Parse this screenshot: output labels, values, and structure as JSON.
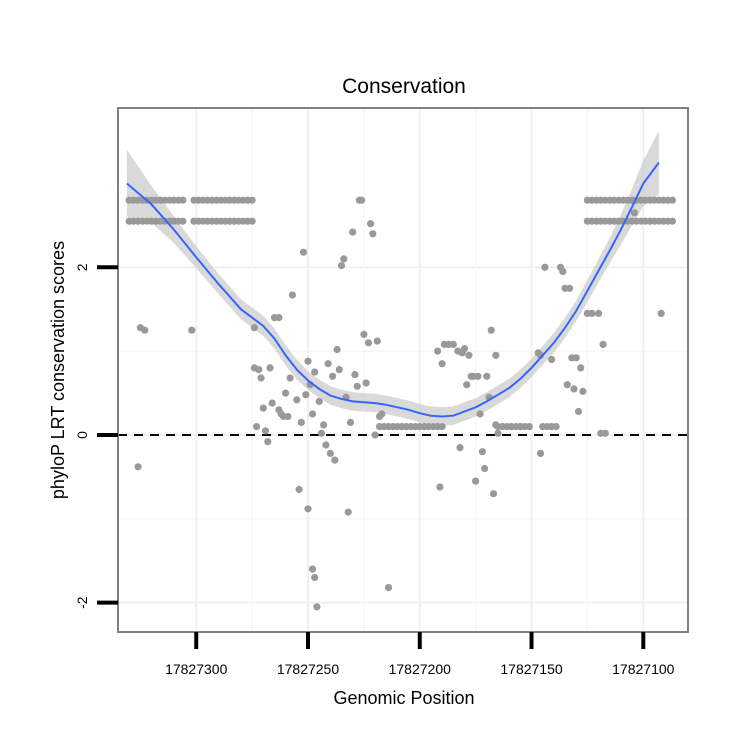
{
  "chart_data": {
    "type": "scatter",
    "title": "Conservation",
    "xlabel": "Genomic Position",
    "ylabel": "phyloP LRT conservation scores",
    "x_reversed": true,
    "xlim": [
      17827335,
      17827080
    ],
    "ylim": [
      -2.35,
      3.9
    ],
    "x_ticks": [
      17827300,
      17827250,
      17827200,
      17827150,
      17827100
    ],
    "x_tick_labels": [
      "17827300",
      "17827250",
      "17827200",
      "17827150",
      "17827100"
    ],
    "y_ticks": [
      -2,
      0,
      2
    ],
    "y_tick_labels": [
      "-2",
      "0",
      "2"
    ],
    "reference_line": {
      "y": 0,
      "style": "dashed"
    },
    "grid": true,
    "colors": {
      "points": "#999999",
      "smooth": "#3366FF",
      "ribbon": "#cccccc",
      "panel_border": "#808080"
    },
    "series": [
      {
        "name": "phyloP scores",
        "points": [
          [
            17827330,
            2.8
          ],
          [
            17827328,
            2.8
          ],
          [
            17827326,
            2.8
          ],
          [
            17827324,
            2.8
          ],
          [
            17827322,
            2.8
          ],
          [
            17827320,
            2.8
          ],
          [
            17827318,
            2.8
          ],
          [
            17827316,
            2.8
          ],
          [
            17827314,
            2.8
          ],
          [
            17827312,
            2.8
          ],
          [
            17827310,
            2.8
          ],
          [
            17827308,
            2.8
          ],
          [
            17827306,
            2.8
          ],
          [
            17827330,
            2.55
          ],
          [
            17827328,
            2.55
          ],
          [
            17827326,
            2.55
          ],
          [
            17827324,
            2.55
          ],
          [
            17827322,
            2.55
          ],
          [
            17827320,
            2.55
          ],
          [
            17827318,
            2.55
          ],
          [
            17827316,
            2.55
          ],
          [
            17827314,
            2.55
          ],
          [
            17827312,
            2.55
          ],
          [
            17827310,
            2.55
          ],
          [
            17827308,
            2.55
          ],
          [
            17827306,
            2.55
          ],
          [
            17827301,
            2.8
          ],
          [
            17827299,
            2.8
          ],
          [
            17827297,
            2.8
          ],
          [
            17827295,
            2.8
          ],
          [
            17827293,
            2.8
          ],
          [
            17827291,
            2.8
          ],
          [
            17827289,
            2.8
          ],
          [
            17827287,
            2.8
          ],
          [
            17827285,
            2.8
          ],
          [
            17827283,
            2.8
          ],
          [
            17827281,
            2.8
          ],
          [
            17827279,
            2.8
          ],
          [
            17827277,
            2.8
          ],
          [
            17827275,
            2.8
          ],
          [
            17827301,
            2.55
          ],
          [
            17827299,
            2.55
          ],
          [
            17827297,
            2.55
          ],
          [
            17827295,
            2.55
          ],
          [
            17827293,
            2.55
          ],
          [
            17827291,
            2.55
          ],
          [
            17827289,
            2.55
          ],
          [
            17827287,
            2.55
          ],
          [
            17827285,
            2.55
          ],
          [
            17827283,
            2.55
          ],
          [
            17827281,
            2.55
          ],
          [
            17827279,
            2.55
          ],
          [
            17827277,
            2.55
          ],
          [
            17827275,
            2.55
          ],
          [
            17827326,
            -0.38
          ],
          [
            17827325,
            1.28
          ],
          [
            17827323,
            1.25
          ],
          [
            17827302,
            1.25
          ],
          [
            17827274,
            1.28
          ],
          [
            17827274,
            0.8
          ],
          [
            17827272,
            0.78
          ],
          [
            17827271,
            0.68
          ],
          [
            17827270,
            0.32
          ],
          [
            17827273,
            0.1
          ],
          [
            17827269,
            0.05
          ],
          [
            17827268,
            -0.08
          ],
          [
            17827267,
            0.8
          ],
          [
            17827266,
            0.38
          ],
          [
            17827265,
            1.4
          ],
          [
            17827263,
            1.4
          ],
          [
            17827263,
            0.3
          ],
          [
            17827262,
            0.25
          ],
          [
            17827261,
            0.22
          ],
          [
            17827260,
            0.5
          ],
          [
            17827259,
            0.22
          ],
          [
            17827258,
            0.68
          ],
          [
            17827257,
            1.67
          ],
          [
            17827255,
            0.42
          ],
          [
            17827253,
            0.15
          ],
          [
            17827254,
            -0.65
          ],
          [
            17827252,
            2.18
          ],
          [
            17827251,
            0.48
          ],
          [
            17827250,
            0.88
          ],
          [
            17827249,
            0.6
          ],
          [
            17827250,
            -0.88
          ],
          [
            17827248,
            0.25
          ],
          [
            17827248,
            -1.6
          ],
          [
            17827247,
            -1.7
          ],
          [
            17827247,
            0.75
          ],
          [
            17827246,
            -2.05
          ],
          [
            17827245,
            0.4
          ],
          [
            17827244,
            0.02
          ],
          [
            17827243,
            0.12
          ],
          [
            17827242,
            -0.12
          ],
          [
            17827241,
            0.85
          ],
          [
            17827240,
            -0.22
          ],
          [
            17827239,
            0.7
          ],
          [
            17827238,
            -0.3
          ],
          [
            17827237,
            1.02
          ],
          [
            17827236,
            0.78
          ],
          [
            17827235,
            2.02
          ],
          [
            17827234,
            2.1
          ],
          [
            17827233,
            0.45
          ],
          [
            17827232,
            -0.92
          ],
          [
            17827231,
            0.15
          ],
          [
            17827230,
            2.42
          ],
          [
            17827229,
            0.72
          ],
          [
            17827228,
            0.58
          ],
          [
            17827227,
            2.8
          ],
          [
            17827226,
            2.8
          ],
          [
            17827225,
            1.2
          ],
          [
            17827224,
            0.62
          ],
          [
            17827223,
            1.1
          ],
          [
            17827222,
            2.52
          ],
          [
            17827221,
            2.4
          ],
          [
            17827220,
            0.0
          ],
          [
            17827219,
            1.12
          ],
          [
            17827218,
            0.22
          ],
          [
            17827217,
            0.25
          ],
          [
            17827214,
            -1.82
          ],
          [
            17827218,
            0.1
          ],
          [
            17827216,
            0.1
          ],
          [
            17827214,
            0.1
          ],
          [
            17827212,
            0.1
          ],
          [
            17827210,
            0.1
          ],
          [
            17827208,
            0.1
          ],
          [
            17827206,
            0.1
          ],
          [
            17827204,
            0.1
          ],
          [
            17827202,
            0.1
          ],
          [
            17827200,
            0.1
          ],
          [
            17827198,
            0.1
          ],
          [
            17827196,
            0.1
          ],
          [
            17827194,
            0.1
          ],
          [
            17827192,
            0.1
          ],
          [
            17827190,
            0.1
          ],
          [
            17827192,
            1.0
          ],
          [
            17827191,
            -0.62
          ],
          [
            17827190,
            0.85
          ],
          [
            17827189,
            1.08
          ],
          [
            17827187,
            1.08
          ],
          [
            17827185,
            1.08
          ],
          [
            17827183,
            1.0
          ],
          [
            17827182,
            -0.15
          ],
          [
            17827181,
            0.98
          ],
          [
            17827180,
            1.03
          ],
          [
            17827179,
            0.6
          ],
          [
            17827178,
            0.95
          ],
          [
            17827177,
            0.7
          ],
          [
            17827176,
            0.7
          ],
          [
            17827175,
            -0.55
          ],
          [
            17827174,
            0.7
          ],
          [
            17827173,
            0.25
          ],
          [
            17827172,
            -0.2
          ],
          [
            17827171,
            -0.4
          ],
          [
            17827170,
            0.7
          ],
          [
            17827169,
            0.45
          ],
          [
            17827168,
            1.25
          ],
          [
            17827167,
            -0.7
          ],
          [
            17827166,
            0.12
          ],
          [
            17827166,
            0.95
          ],
          [
            17827165,
            0.02
          ],
          [
            17827165,
            0.1
          ],
          [
            17827163,
            0.1
          ],
          [
            17827161,
            0.1
          ],
          [
            17827159,
            0.1
          ],
          [
            17827157,
            0.1
          ],
          [
            17827155,
            0.1
          ],
          [
            17827153,
            0.1
          ],
          [
            17827151,
            0.1
          ],
          [
            17827155,
            0.1
          ],
          [
            17827147,
            0.98
          ],
          [
            17827146,
            0.95
          ],
          [
            17827146,
            -0.22
          ],
          [
            17827144,
            2.0
          ],
          [
            17827145,
            0.1
          ],
          [
            17827143,
            0.1
          ],
          [
            17827141,
            0.1
          ],
          [
            17827139,
            0.1
          ],
          [
            17827141,
            0.9
          ],
          [
            17827137,
            2.0
          ],
          [
            17827136,
            1.95
          ],
          [
            17827135,
            1.75
          ],
          [
            17827133,
            1.75
          ],
          [
            17827134,
            0.6
          ],
          [
            17827132,
            0.92
          ],
          [
            17827131,
            0.55
          ],
          [
            17827130,
            0.92
          ],
          [
            17827129,
            0.28
          ],
          [
            17827128,
            0.8
          ],
          [
            17827127,
            0.52
          ],
          [
            17827125,
            1.45
          ],
          [
            17827123,
            1.45
          ],
          [
            17827120,
            1.45
          ],
          [
            17827118,
            1.08
          ],
          [
            17827119,
            0.02
          ],
          [
            17827117,
            0.02
          ],
          [
            17827125,
            2.8
          ],
          [
            17827123,
            2.8
          ],
          [
            17827121,
            2.8
          ],
          [
            17827119,
            2.8
          ],
          [
            17827117,
            2.8
          ],
          [
            17827115,
            2.8
          ],
          [
            17827113,
            2.8
          ],
          [
            17827111,
            2.8
          ],
          [
            17827109,
            2.8
          ],
          [
            17827107,
            2.8
          ],
          [
            17827105,
            2.8
          ],
          [
            17827103,
            2.8
          ],
          [
            17827101,
            2.8
          ],
          [
            17827099,
            2.8
          ],
          [
            17827097,
            2.8
          ],
          [
            17827095,
            2.8
          ],
          [
            17827093,
            2.8
          ],
          [
            17827091,
            2.8
          ],
          [
            17827089,
            2.8
          ],
          [
            17827087,
            2.8
          ],
          [
            17827125,
            2.55
          ],
          [
            17827123,
            2.55
          ],
          [
            17827121,
            2.55
          ],
          [
            17827119,
            2.55
          ],
          [
            17827117,
            2.55
          ],
          [
            17827115,
            2.55
          ],
          [
            17827113,
            2.55
          ],
          [
            17827111,
            2.55
          ],
          [
            17827109,
            2.55
          ],
          [
            17827107,
            2.55
          ],
          [
            17827105,
            2.55
          ],
          [
            17827103,
            2.55
          ],
          [
            17827101,
            2.55
          ],
          [
            17827099,
            2.55
          ],
          [
            17827097,
            2.55
          ],
          [
            17827095,
            2.55
          ],
          [
            17827093,
            2.55
          ],
          [
            17827091,
            2.55
          ],
          [
            17827089,
            2.55
          ],
          [
            17827087,
            2.55
          ],
          [
            17827104,
            2.65
          ],
          [
            17827092,
            1.45
          ]
        ]
      },
      {
        "name": "loess smooth",
        "curve": [
          [
            17827331,
            3.0
          ],
          [
            17827320,
            2.75
          ],
          [
            17827310,
            2.45
          ],
          [
            17827300,
            2.12
          ],
          [
            17827290,
            1.8
          ],
          [
            17827280,
            1.5
          ],
          [
            17827270,
            1.3
          ],
          [
            17827265,
            1.15
          ],
          [
            17827260,
            0.95
          ],
          [
            17827255,
            0.78
          ],
          [
            17827250,
            0.65
          ],
          [
            17827245,
            0.55
          ],
          [
            17827240,
            0.47
          ],
          [
            17827235,
            0.43
          ],
          [
            17827230,
            0.4
          ],
          [
            17827225,
            0.39
          ],
          [
            17827220,
            0.38
          ],
          [
            17827215,
            0.36
          ],
          [
            17827210,
            0.33
          ],
          [
            17827205,
            0.3
          ],
          [
            17827200,
            0.26
          ],
          [
            17827195,
            0.23
          ],
          [
            17827190,
            0.22
          ],
          [
            17827185,
            0.23
          ],
          [
            17827180,
            0.28
          ],
          [
            17827175,
            0.33
          ],
          [
            17827170,
            0.4
          ],
          [
            17827165,
            0.48
          ],
          [
            17827160,
            0.56
          ],
          [
            17827155,
            0.67
          ],
          [
            17827150,
            0.8
          ],
          [
            17827145,
            0.95
          ],
          [
            17827140,
            1.1
          ],
          [
            17827135,
            1.28
          ],
          [
            17827130,
            1.48
          ],
          [
            17827125,
            1.72
          ],
          [
            17827120,
            1.96
          ],
          [
            17827115,
            2.2
          ],
          [
            17827110,
            2.45
          ],
          [
            17827105,
            2.72
          ],
          [
            17827100,
            3.0
          ],
          [
            17827093,
            3.25
          ]
        ],
        "ribbon_halfwidth": [
          0.4,
          0.22,
          0.16,
          0.13,
          0.12,
          0.12,
          0.12,
          0.12,
          0.12,
          0.12,
          0.11,
          0.11,
          0.11,
          0.11,
          0.11,
          0.11,
          0.11,
          0.11,
          0.11,
          0.11,
          0.11,
          0.11,
          0.11,
          0.11,
          0.11,
          0.11,
          0.11,
          0.11,
          0.11,
          0.11,
          0.11,
          0.11,
          0.12,
          0.12,
          0.12,
          0.13,
          0.14,
          0.15,
          0.18,
          0.22,
          0.27,
          0.38
        ]
      }
    ]
  }
}
